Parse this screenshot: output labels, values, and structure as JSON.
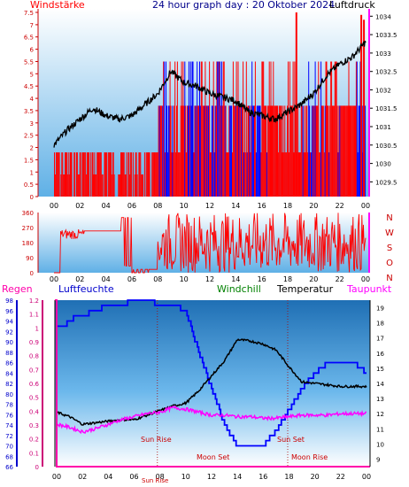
{
  "header": {
    "left_label": "Windstärke",
    "title": "24 hour graph day : 20 Oktober 2024",
    "right_label": "Luftdruck"
  },
  "wind_dir_labels": [
    "N",
    "W",
    "S",
    "O",
    "N"
  ],
  "legend": {
    "regen": "Regen",
    "luftfeuchte": "Luftfeuchte",
    "windchill": "Windchill",
    "temperatur": "Temperatur",
    "taupunkt": "Taupunkt"
  },
  "annotations": {
    "sun_rise": "Sun Rise",
    "sun_set": "Sun Set",
    "moon_set": "Moon Set",
    "moon_rise": "Moon Rise",
    "sun_rise_axis": "Sun Rise"
  },
  "colors": {
    "wind_red": "#ff0000",
    "wind_blue": "#0000ff",
    "pressure": "#000000",
    "humidity": "#0000ff",
    "rain": "#ff00aa",
    "dewpoint": "#ff00ff",
    "temperature": "#000000",
    "panel_top": "#ffffff",
    "panel_bottom": "#4aa8e0",
    "title_blue": "#00008b",
    "windchill": "#008000"
  },
  "chart_data": [
    {
      "type": "bar",
      "name": "wind",
      "title": "24 hour graph day : 20 Oktober 2024",
      "ylabel": "Windstärke",
      "y2label": "Luftdruck",
      "x_ticks": [
        "00",
        "02",
        "04",
        "06",
        "08",
        "10",
        "12",
        "14",
        "16",
        "18",
        "20",
        "22",
        "00"
      ],
      "y_ticks": [
        "7.5",
        "7",
        "6.5",
        "6",
        "5.5",
        "5",
        "4.5",
        "4",
        "3.5",
        "3",
        "2.5",
        "2",
        "1.5",
        "1",
        "0.5",
        "0"
      ],
      "ylim": [
        0,
        7.5
      ],
      "y2_ticks": [
        "1034",
        "1033.5",
        "1033",
        "1032.5",
        "1032",
        "1031.5",
        "1031",
        "1030.5",
        "1030",
        "1029.5"
      ],
      "y2lim": [
        1029.1,
        1034.2
      ],
      "pressure_x_hours": [
        0,
        1,
        2,
        3,
        4,
        5,
        6,
        7,
        8,
        9,
        10,
        11,
        12,
        13,
        14,
        15,
        16,
        17,
        18,
        19,
        20,
        21,
        22,
        23,
        24
      ],
      "pressure_y": [
        1030.5,
        1030.9,
        1031.2,
        1031.5,
        1031.3,
        1031.2,
        1031.3,
        1031.6,
        1031.9,
        1032.5,
        1032.2,
        1032.1,
        1031.9,
        1031.8,
        1031.7,
        1031.4,
        1031.3,
        1031.2,
        1031.4,
        1031.6,
        1031.9,
        1032.4,
        1032.7,
        1032.9,
        1033.3
      ],
      "wind_gust_band": "red and blue bars 0–7.5"
    },
    {
      "type": "scatter",
      "name": "wind_direction",
      "y_ticks": [
        "360",
        "270",
        "180",
        "90",
        "0"
      ],
      "ylim": [
        0,
        360
      ],
      "x_ticks": [
        "00",
        "02",
        "04",
        "06",
        "08",
        "10",
        "12",
        "14",
        "16",
        "18",
        "20",
        "22",
        "00"
      ]
    },
    {
      "type": "line",
      "name": "weather",
      "x_ticks": [
        "00",
        "02",
        "04",
        "06",
        "08",
        "10",
        "12",
        "14",
        "16",
        "18",
        "20",
        "22",
        "00"
      ],
      "humidity_ticks": [
        "98",
        "96",
        "94",
        "92",
        "90",
        "88",
        "86",
        "84",
        "82",
        "80",
        "78",
        "76",
        "74",
        "72",
        "70",
        "68",
        "66"
      ],
      "humidity_lim": [
        66,
        98
      ],
      "rain_ticks": [
        "1.2",
        "1.1",
        "1",
        "0.9",
        "0.8",
        "0.7",
        "0.6",
        "0.5",
        "0.4",
        "0.3",
        "0.2",
        "0.1",
        "0"
      ],
      "rain_lim": [
        0,
        1.2
      ],
      "temp_ticks": [
        "19",
        "18",
        "17",
        "16",
        "15",
        "14",
        "13",
        "12",
        "11",
        "10",
        "9"
      ],
      "temp_lim": [
        8.5,
        19.5
      ],
      "series": [
        {
          "name": "Luftfeuchte",
          "x": [
            0,
            0.5,
            1,
            1.5,
            2,
            3,
            4,
            5,
            6,
            7,
            8,
            9,
            10,
            11,
            12,
            13,
            14,
            15,
            16,
            17,
            18,
            19,
            20,
            21,
            22,
            23,
            24
          ],
          "y": [
            93,
            93,
            94,
            95,
            95,
            96,
            97,
            97,
            98,
            98,
            97,
            97,
            96,
            88,
            81,
            74,
            70,
            70,
            70,
            73,
            77,
            81,
            84,
            86,
            86,
            86,
            84
          ]
        },
        {
          "name": "Temperatur",
          "x": [
            0,
            1,
            2,
            3,
            4,
            5,
            6,
            7,
            8,
            9,
            10,
            11,
            12,
            13,
            14,
            15,
            16,
            17,
            18,
            19,
            20,
            21,
            22,
            23,
            24
          ],
          "y": [
            12.1,
            11.8,
            11.3,
            11.4,
            11.5,
            11.6,
            11.6,
            11.9,
            12.2,
            12.5,
            12.7,
            13.5,
            14.5,
            15.5,
            16.9,
            16.8,
            16.6,
            16.2,
            15.1,
            14.1,
            14,
            13.9,
            13.8,
            13.8,
            13.8
          ]
        },
        {
          "name": "Taupunkt",
          "x": [
            0,
            1,
            2,
            3,
            4,
            5,
            6,
            7,
            8,
            9,
            10,
            11,
            12,
            13,
            14,
            15,
            16,
            17,
            18,
            19,
            20,
            21,
            22,
            23,
            24
          ],
          "y": [
            11.3,
            11.1,
            10.8,
            11,
            11.3,
            11.6,
            11.8,
            12,
            12.1,
            12.4,
            12.3,
            12.1,
            11.9,
            11.9,
            11.8,
            11.8,
            11.7,
            11.7,
            11.8,
            11.9,
            11.9,
            11.9,
            12,
            12,
            12
          ]
        },
        {
          "name": "Regen",
          "x": [
            0,
            0.3,
            0.3,
            24
          ],
          "y": [
            1.2,
            1.2,
            0,
            0
          ]
        }
      ]
    }
  ]
}
